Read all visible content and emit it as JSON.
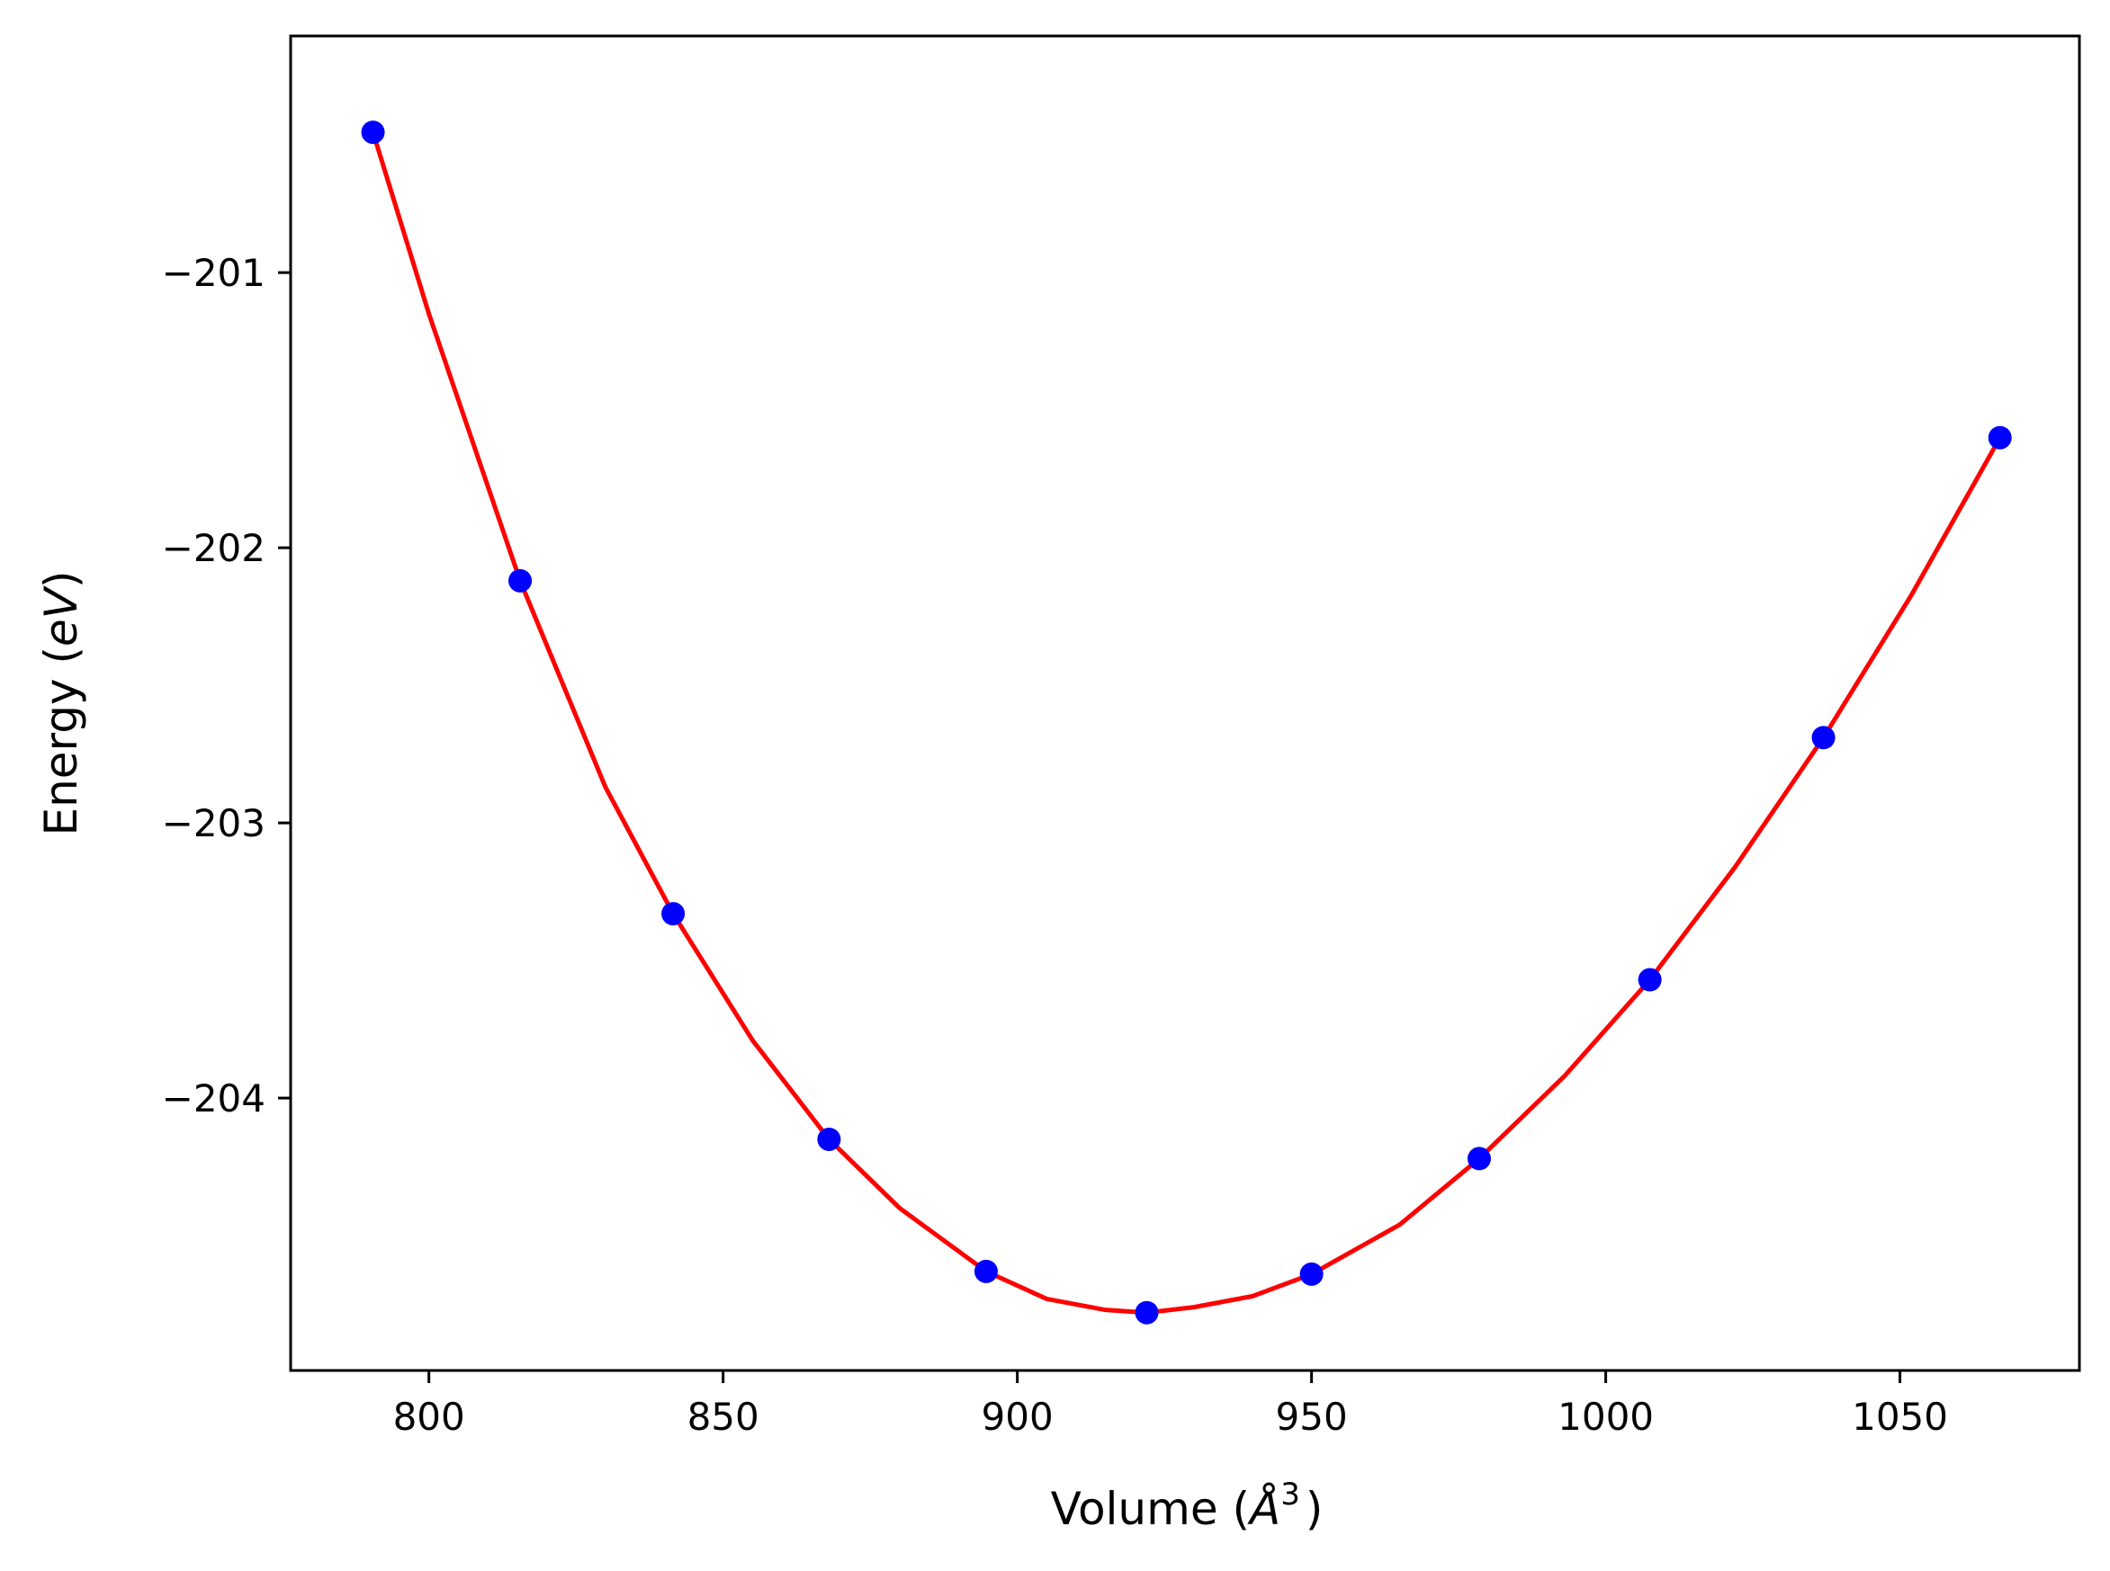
{
  "chart_data": {
    "type": "scatter",
    "title": "",
    "xlabel": "Volume ($\\AA^3$)",
    "xlabel_parts": {
      "prefix": "Volume (",
      "symbol": "Å",
      "sup": "3",
      "suffix": ")"
    },
    "ylabel": "Energy ($eV$)",
    "ylabel_parts": {
      "prefix": "Energy (",
      "unit": "eV",
      "suffix": ")"
    },
    "xlim": [
      776.5,
      1080.5
    ],
    "ylim": [
      -204.99,
      -200.14
    ],
    "xticks": [
      800,
      850,
      900,
      950,
      1000,
      1050
    ],
    "xtick_labels": [
      "800",
      "850",
      "900",
      "950",
      "1000",
      "1050"
    ],
    "yticks": [
      -201,
      -202,
      -203,
      -204
    ],
    "ytick_labels": [
      "−201",
      "−202",
      "−203",
      "−204"
    ],
    "grid": false,
    "legend": "none",
    "series": [
      {
        "kind": "points",
        "color": "#0000ff",
        "x": [
          790.5,
          815.5,
          841.5,
          868.0,
          894.7,
          922.0,
          950.0,
          978.5,
          1007.5,
          1037.0,
          1067.0
        ],
        "y": [
          -200.49,
          -202.12,
          -203.33,
          -204.15,
          -204.63,
          -204.78,
          -204.64,
          -204.22,
          -203.57,
          -202.69,
          -201.6
        ]
      },
      {
        "kind": "fit-curve",
        "color": "#ff0000",
        "x": [
          790.5,
          800,
          815.5,
          830,
          841.5,
          855,
          868.0,
          880,
          894.7,
          905,
          915,
          922.0,
          930,
          940,
          950.0,
          965,
          978.5,
          993,
          1007.5,
          1022,
          1037.0,
          1052,
          1067.0
        ],
        "y": [
          -200.49,
          -201.15,
          -202.12,
          -202.87,
          -203.33,
          -203.79,
          -204.15,
          -204.4,
          -204.63,
          -204.73,
          -204.77,
          -204.78,
          -204.76,
          -204.72,
          -204.64,
          -204.46,
          -204.22,
          -203.92,
          -203.57,
          -203.16,
          -202.69,
          -202.17,
          -201.6
        ]
      }
    ]
  }
}
